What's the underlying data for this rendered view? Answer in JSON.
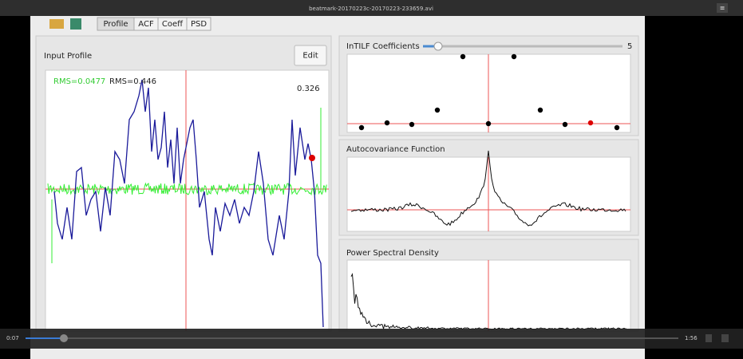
{
  "window_title": "beatmark-20170223c-20170223-233659.avi",
  "tabs": [
    "Profile",
    "ACF",
    "Coeff",
    "PSD"
  ],
  "input_profile": {
    "title": "Input Profile",
    "edit_button": "Edit",
    "rms_noise": "RMS=0.0477",
    "rms_profile": "RMS=0.446",
    "value": "0.326"
  },
  "coefficients": {
    "title": "InTILF Coefficients",
    "value": "5"
  },
  "acf": {
    "title": "Autocovariance Function"
  },
  "psd": {
    "title": "Power Spectral Density"
  },
  "player": {
    "current_time": "0:07",
    "duration": "1:56"
  }
}
